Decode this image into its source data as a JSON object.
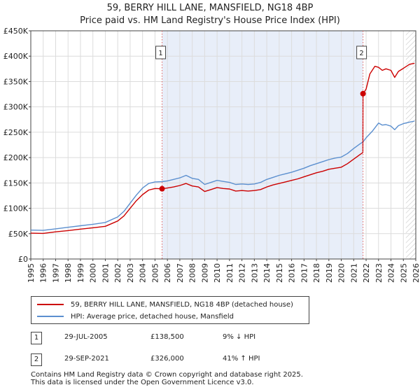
{
  "header": {
    "title_line1": "59, BERRY HILL LANE, MANSFIELD, NG18 4BP",
    "title_line2": "Price paid vs. HM Land Registry's House Price Index (HPI)"
  },
  "chart_data": {
    "type": "line",
    "title": "59, BERRY HILL LANE, MANSFIELD, NG18 4BP — Price paid vs. HM Land Registry's House Price Index (HPI)",
    "xlim": [
      1995,
      2026
    ],
    "ylim": [
      0,
      450000
    ],
    "y_ticks": [
      {
        "value": 0,
        "label": "£0"
      },
      {
        "value": 50000,
        "label": "£50K"
      },
      {
        "value": 100000,
        "label": "£100K"
      },
      {
        "value": 150000,
        "label": "£150K"
      },
      {
        "value": 200000,
        "label": "£200K"
      },
      {
        "value": 250000,
        "label": "£250K"
      },
      {
        "value": 300000,
        "label": "£300K"
      },
      {
        "value": 350000,
        "label": "£350K"
      },
      {
        "value": 400000,
        "label": "£400K"
      },
      {
        "value": 450000,
        "label": "£450K"
      }
    ],
    "x_ticks": [
      "1995",
      "1996",
      "1997",
      "1998",
      "1999",
      "2000",
      "2001",
      "2002",
      "2003",
      "2004",
      "2005",
      "2006",
      "2007",
      "2008",
      "2009",
      "2010",
      "2011",
      "2012",
      "2013",
      "2014",
      "2015",
      "2016",
      "2017",
      "2018",
      "2019",
      "2020",
      "2021",
      "2022",
      "2023",
      "2024",
      "2025",
      "2026"
    ],
    "shaded_region": [
      2005.57,
      2021.75
    ],
    "forecast_from": 2025.2,
    "grid": true,
    "series": [
      {
        "name": "59, BERRY HILL LANE, MANSFIELD, NG18 4BP (detached house)",
        "color": "#cc0000",
        "points": [
          [
            1995.0,
            51000
          ],
          [
            1996.0,
            50500
          ],
          [
            1997.0,
            53500
          ],
          [
            1998.0,
            56000
          ],
          [
            1999.0,
            59000
          ],
          [
            2000.0,
            61500
          ],
          [
            2001.0,
            64500
          ],
          [
            2002.0,
            75000
          ],
          [
            2002.5,
            85000
          ],
          [
            2003.0,
            100000
          ],
          [
            2003.5,
            115000
          ],
          [
            2004.0,
            127000
          ],
          [
            2004.5,
            136000
          ],
          [
            2005.0,
            139000
          ],
          [
            2005.57,
            138500
          ],
          [
            2006.0,
            140000
          ],
          [
            2006.5,
            142000
          ],
          [
            2007.0,
            145000
          ],
          [
            2007.5,
            149000
          ],
          [
            2008.0,
            144000
          ],
          [
            2008.5,
            142000
          ],
          [
            2009.0,
            133000
          ],
          [
            2009.5,
            137000
          ],
          [
            2010.0,
            141000
          ],
          [
            2010.5,
            139000
          ],
          [
            2011.0,
            138000
          ],
          [
            2011.5,
            134000
          ],
          [
            2012.0,
            135000
          ],
          [
            2012.5,
            134000
          ],
          [
            2013.0,
            135000
          ],
          [
            2013.5,
            137000
          ],
          [
            2014.0,
            142000
          ],
          [
            2014.5,
            146000
          ],
          [
            2015.0,
            149000
          ],
          [
            2015.5,
            152000
          ],
          [
            2016.0,
            155000
          ],
          [
            2016.5,
            158000
          ],
          [
            2017.0,
            162000
          ],
          [
            2017.5,
            166000
          ],
          [
            2018.0,
            170000
          ],
          [
            2018.5,
            173000
          ],
          [
            2019.0,
            177000
          ],
          [
            2019.5,
            179000
          ],
          [
            2020.0,
            181000
          ],
          [
            2020.5,
            188000
          ],
          [
            2021.0,
            197000
          ],
          [
            2021.5,
            206000
          ],
          [
            2021.74,
            210000
          ],
          [
            2021.75,
            326000
          ],
          [
            2022.0,
            335000
          ],
          [
            2022.3,
            365000
          ],
          [
            2022.7,
            380000
          ],
          [
            2023.0,
            378000
          ],
          [
            2023.3,
            372000
          ],
          [
            2023.6,
            375000
          ],
          [
            2024.0,
            372000
          ],
          [
            2024.3,
            358000
          ],
          [
            2024.6,
            370000
          ],
          [
            2025.0,
            376000
          ],
          [
            2025.5,
            384000
          ],
          [
            2025.9,
            386000
          ]
        ]
      },
      {
        "name": "HPI: Average price, detached house, Mansfield",
        "color": "#5b8fcf",
        "points": [
          [
            1995.0,
            57000
          ],
          [
            1996.0,
            56500
          ],
          [
            1997.0,
            59500
          ],
          [
            1998.0,
            62500
          ],
          [
            1999.0,
            65500
          ],
          [
            2000.0,
            68500
          ],
          [
            2001.0,
            72000
          ],
          [
            2002.0,
            83000
          ],
          [
            2002.5,
            94000
          ],
          [
            2003.0,
            110000
          ],
          [
            2003.5,
            126000
          ],
          [
            2004.0,
            140000
          ],
          [
            2004.5,
            149000
          ],
          [
            2005.0,
            152000
          ],
          [
            2005.57,
            152500
          ],
          [
            2006.0,
            154000
          ],
          [
            2006.5,
            157000
          ],
          [
            2007.0,
            160000
          ],
          [
            2007.5,
            165000
          ],
          [
            2008.0,
            159000
          ],
          [
            2008.5,
            157000
          ],
          [
            2009.0,
            147000
          ],
          [
            2009.5,
            151000
          ],
          [
            2010.0,
            155000
          ],
          [
            2010.5,
            153000
          ],
          [
            2011.0,
            151000
          ],
          [
            2011.5,
            147000
          ],
          [
            2012.0,
            148000
          ],
          [
            2012.5,
            147000
          ],
          [
            2013.0,
            148000
          ],
          [
            2013.5,
            151000
          ],
          [
            2014.0,
            157000
          ],
          [
            2014.5,
            161000
          ],
          [
            2015.0,
            165000
          ],
          [
            2015.5,
            168000
          ],
          [
            2016.0,
            171000
          ],
          [
            2016.5,
            175000
          ],
          [
            2017.0,
            179000
          ],
          [
            2017.5,
            184000
          ],
          [
            2018.0,
            188000
          ],
          [
            2018.5,
            192000
          ],
          [
            2019.0,
            196000
          ],
          [
            2019.5,
            199000
          ],
          [
            2020.0,
            201000
          ],
          [
            2020.5,
            208000
          ],
          [
            2021.0,
            218000
          ],
          [
            2021.5,
            227000
          ],
          [
            2021.75,
            231000
          ],
          [
            2022.0,
            239000
          ],
          [
            2022.5,
            252000
          ],
          [
            2023.0,
            268000
          ],
          [
            2023.3,
            264000
          ],
          [
            2023.6,
            265000
          ],
          [
            2024.0,
            262000
          ],
          [
            2024.3,
            255000
          ],
          [
            2024.6,
            263000
          ],
          [
            2025.0,
            267000
          ],
          [
            2025.5,
            270000
          ],
          [
            2025.9,
            272000
          ]
        ]
      }
    ],
    "annotations": [
      {
        "label": "1",
        "x": 2005.57,
        "y": 138500
      },
      {
        "label": "2",
        "x": 2021.75,
        "y": 326000
      }
    ]
  },
  "legend": {
    "items": [
      {
        "label": "59, BERRY HILL LANE, MANSFIELD, NG18 4BP (detached house)",
        "color": "#cc0000"
      },
      {
        "label": "HPI: Average price, detached house, Mansfield",
        "color": "#5b8fcf"
      }
    ]
  },
  "transactions": [
    {
      "num": "1",
      "date": "29-JUL-2005",
      "price": "£138,500",
      "hpi": "9% ↓ HPI"
    },
    {
      "num": "2",
      "date": "29-SEP-2021",
      "price": "£326,000",
      "hpi": "41% ↑ HPI"
    }
  ],
  "footer": {
    "line1": "Contains HM Land Registry data © Crown copyright and database right 2025.",
    "line2": "This data is licensed under the Open Government Licence v3.0."
  }
}
